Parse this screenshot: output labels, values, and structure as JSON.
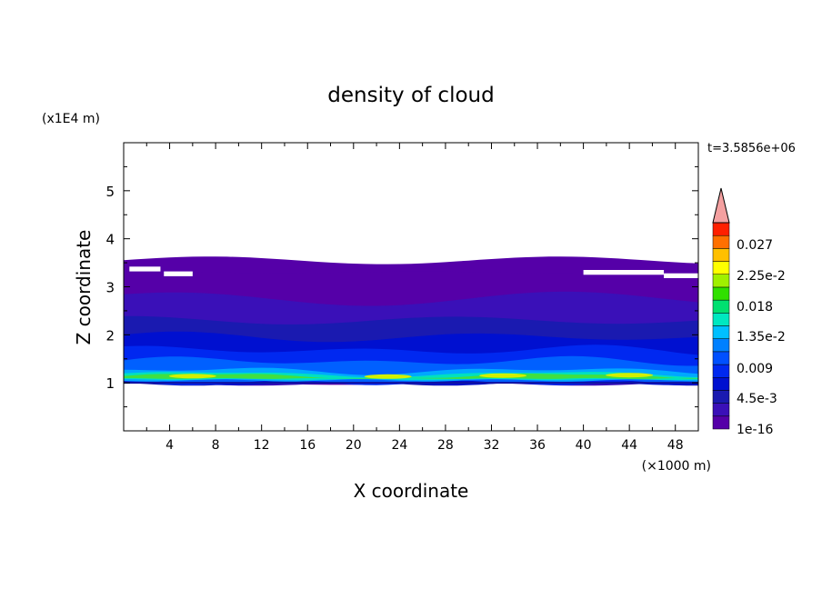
{
  "chart_data": {
    "type": "heatmap",
    "title": "density of cloud",
    "xlabel": "X coordinate",
    "ylabel": "Z coordinate",
    "x_unit": "(×1000 m)",
    "y_unit": "(x1E4 m)",
    "time_label": "t=3.5856e+06",
    "xlim": [
      0,
      50
    ],
    "ylim": [
      0,
      6
    ],
    "x_ticks": [
      "4",
      "8",
      "12",
      "16",
      "20",
      "24",
      "28",
      "32",
      "36",
      "40",
      "44",
      "48"
    ],
    "x_tick_values": [
      4,
      8,
      12,
      16,
      20,
      24,
      28,
      32,
      36,
      40,
      44,
      48
    ],
    "y_ticks": [
      "1",
      "2",
      "3",
      "4",
      "5"
    ],
    "y_tick_values": [
      1,
      2,
      3,
      4,
      5
    ],
    "colorbar": {
      "labels": [
        "0.027",
        "2.25e-2",
        "0.018",
        "1.35e-2",
        "0.009",
        "4.5e-3",
        "1e-16"
      ],
      "label_values": [
        0.027,
        0.0225,
        0.018,
        0.0135,
        0.009,
        0.0045,
        1e-16
      ],
      "levels": 14,
      "colors": [
        "#5500a8",
        "#3a10b8",
        "#1a1ab0",
        "#0010d0",
        "#0028f0",
        "#0050ff",
        "#0080ff",
        "#00c0ff",
        "#00e8c0",
        "#00e070",
        "#30e000",
        "#a0f000",
        "#ffff00",
        "#ffc000",
        "#ff7000",
        "#ff2000"
      ],
      "extend_color": "#f4a0a0"
    },
    "cloud_layers": [
      {
        "z_bottom": 1.0,
        "z_top": 1.05,
        "value": "4.5e-3"
      },
      {
        "z_bottom": 1.05,
        "z_top": 1.2,
        "value": "0.018"
      },
      {
        "z_bottom": 1.2,
        "z_top": 1.6,
        "value": "0.009"
      },
      {
        "z_bottom": 1.6,
        "z_top": 2.3,
        "value": "4.5e-3"
      },
      {
        "z_bottom": 2.3,
        "z_top": 3.5,
        "value": "1e-16"
      }
    ]
  }
}
